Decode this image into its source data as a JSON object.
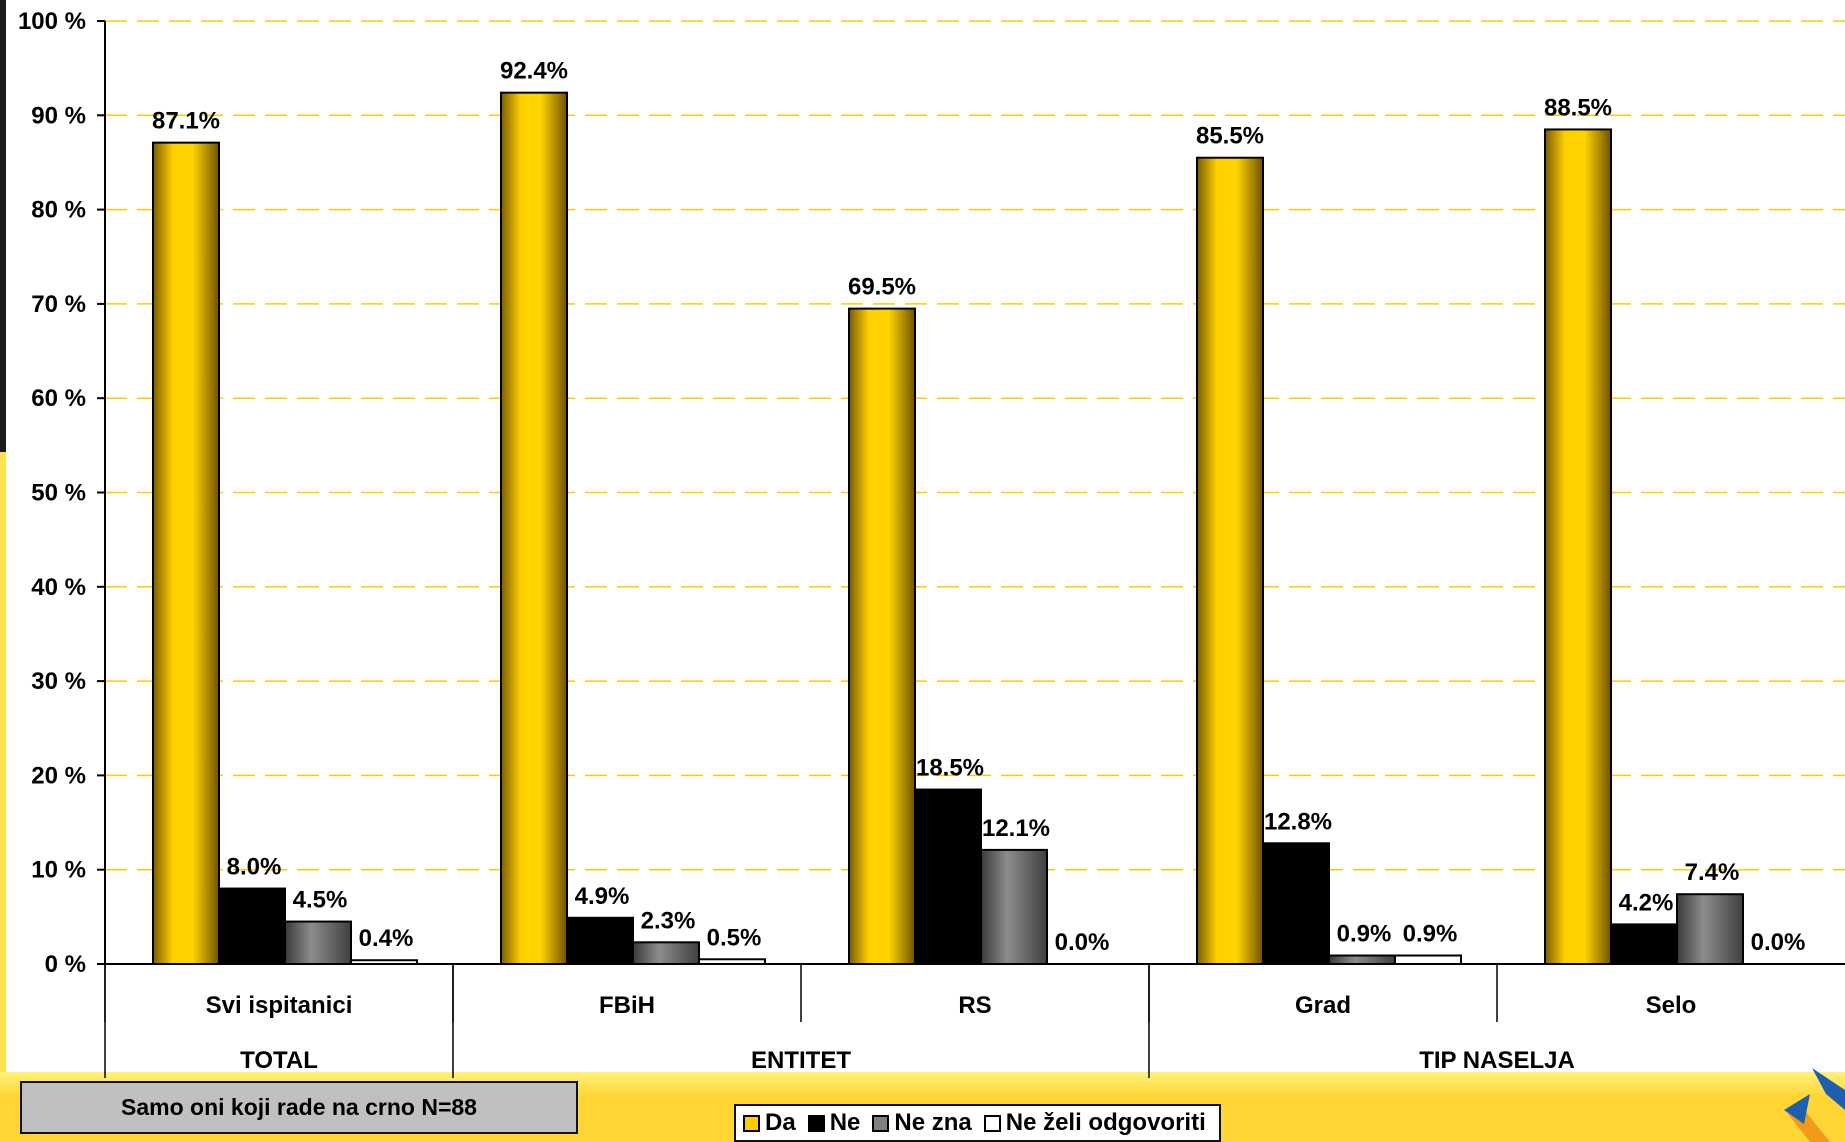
{
  "chart_data": {
    "type": "bar",
    "groups": [
      {
        "name": "TOTAL",
        "categories": [
          "Svi ispitanici"
        ]
      },
      {
        "name": "ENTITET",
        "categories": [
          "FBiH",
          "RS"
        ]
      },
      {
        "name": "TIP NASELJA",
        "categories": [
          "Grad",
          "Selo"
        ]
      }
    ],
    "categories": [
      "Svi ispitanici",
      "FBiH",
      "RS",
      "Grad",
      "Selo"
    ],
    "series": [
      {
        "name": "Da",
        "color": "#ffcc00",
        "values": [
          87.1,
          92.4,
          69.5,
          85.5,
          88.5
        ]
      },
      {
        "name": "Ne",
        "color": "#000000",
        "values": [
          8.0,
          4.9,
          18.5,
          12.8,
          4.2
        ]
      },
      {
        "name": "Ne zna",
        "color": "#808080",
        "values": [
          4.5,
          2.3,
          12.1,
          0.9,
          7.4
        ]
      },
      {
        "name": "Ne želi odgovoriti",
        "color": "#ffffff",
        "values": [
          0.4,
          0.5,
          0.0,
          0.9,
          0.0
        ]
      }
    ],
    "value_labels": [
      [
        "87.1%",
        "92.4%",
        "69.5%",
        "85.5%",
        "88.5%"
      ],
      [
        "8.0%",
        "4.9%",
        "18.5%",
        "12.8%",
        "4.2%"
      ],
      [
        "4.5%",
        "2.3%",
        "12.1%",
        "0.9%",
        "7.4%"
      ],
      [
        "0.4%",
        "0.5%",
        "0.0%",
        "0.9%",
        "0.0%"
      ]
    ],
    "ylim": [
      0,
      100
    ],
    "yticks": [
      0,
      10,
      20,
      30,
      40,
      50,
      60,
      70,
      80,
      90,
      100
    ],
    "ytick_labels": [
      "0 %",
      "10 %",
      "20 %",
      "30 %",
      "40 %",
      "50 %",
      "60 %",
      "70 %",
      "80 %",
      "90 %",
      "100 %"
    ],
    "grid": true,
    "grid_color": "#ffcc00",
    "legend_position": "bottom"
  },
  "note": "Samo oni koji rade na crno N=88",
  "legend": [
    "Da",
    "Ne",
    "Ne zna",
    "Ne želi odgovoriti"
  ]
}
